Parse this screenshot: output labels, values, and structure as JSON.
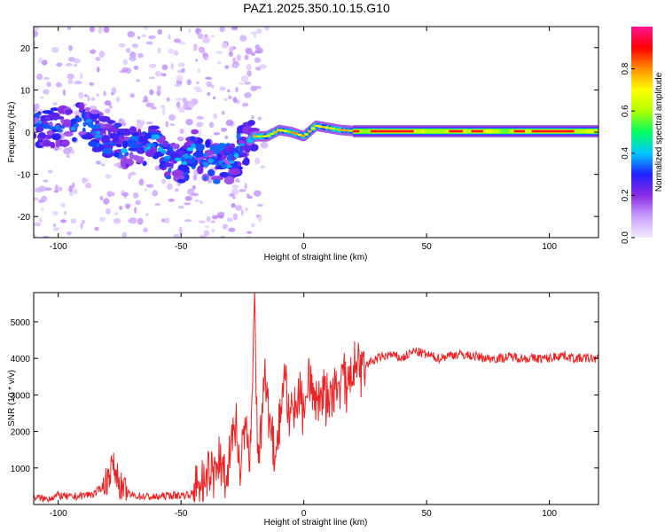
{
  "title": "PAZ1.2025.350.10.15.G10",
  "chart_data": [
    {
      "type": "heatmap",
      "xlabel": "Height of straight line (km)",
      "ylabel": "Frequency (Hz)",
      "xlim": [
        -110,
        120
      ],
      "ylim": [
        -25,
        25
      ],
      "xticks": [
        -100,
        -50,
        0,
        50,
        100
      ],
      "yticks": [
        -20,
        -10,
        0,
        10,
        20
      ],
      "colorbar": {
        "label": "Normalized spectral amplitude",
        "range": [
          0,
          1
        ],
        "ticks": [
          0.0,
          0.2,
          0.4,
          0.6,
          0.8
        ],
        "tick_labels": [
          "0.0",
          "0.2",
          "0.4",
          "0.6",
          "0.8"
        ],
        "colors": [
          "#f2eaff",
          "#c9a0ff",
          "#8a2be2",
          "#2020ff",
          "#00c8ff",
          "#00ff60",
          "#b0ff00",
          "#ffff00",
          "#ff9000",
          "#ff0000",
          "#ff1493"
        ]
      },
      "ridge": [
        {
          "x": -110,
          "f": 1.0
        },
        {
          "x": -100,
          "f": 1.0
        },
        {
          "x": -95,
          "f": 1.5
        },
        {
          "x": -90,
          "f": 2.5
        },
        {
          "x": -85,
          "f": 0.5
        },
        {
          "x": -80,
          "f": -1.5
        },
        {
          "x": -75,
          "f": -3.0
        },
        {
          "x": -70,
          "f": -4.0
        },
        {
          "x": -65,
          "f": -3.0
        },
        {
          "x": -60,
          "f": -2.0
        },
        {
          "x": -55,
          "f": -7.0
        },
        {
          "x": -50,
          "f": -7.5
        },
        {
          "x": -45,
          "f": -4.0
        },
        {
          "x": -40,
          "f": -6.5
        },
        {
          "x": -35,
          "f": -7.5
        },
        {
          "x": -30,
          "f": -7.0
        },
        {
          "x": -25,
          "f": -3.5
        },
        {
          "x": -20,
          "f": -1.0
        },
        {
          "x": -15,
          "f": -1.0
        },
        {
          "x": -10,
          "f": 0.5
        },
        {
          "x": -5,
          "f": 0.0
        },
        {
          "x": 0,
          "f": -1.0
        },
        {
          "x": 5,
          "f": 1.5
        },
        {
          "x": 10,
          "f": 1.0
        },
        {
          "x": 15,
          "f": 0.5
        },
        {
          "x": 20,
          "f": 0.3
        },
        {
          "x": 50,
          "f": 0.2
        },
        {
          "x": 120,
          "f": 0.2
        }
      ]
    },
    {
      "type": "line",
      "xlabel": "Height of straight line (km)",
      "ylabel": "SNR (10 * v/v)",
      "xlim": [
        -110,
        120
      ],
      "ylim": [
        0,
        5800
      ],
      "xticks": [
        -100,
        -50,
        0,
        50,
        100
      ],
      "yticks": [
        1000,
        2000,
        3000,
        4000,
        5000
      ],
      "color": "#ee2222",
      "series": [
        {
          "name": "SNR",
          "x": [
            -110,
            -105,
            -100,
            -95,
            -90,
            -85,
            -82,
            -80,
            -78,
            -76,
            -74,
            -72,
            -70,
            -65,
            -60,
            -55,
            -50,
            -45,
            -42,
            -40,
            -38,
            -36,
            -34,
            -32,
            -30,
            -28,
            -26,
            -24,
            -22,
            -21,
            -20,
            -19,
            -18,
            -16,
            -14,
            -12,
            -10,
            -8,
            -6,
            -4,
            -2,
            0,
            2,
            4,
            6,
            8,
            10,
            12,
            14,
            16,
            18,
            20,
            22,
            25,
            30,
            35,
            40,
            45,
            50,
            55,
            60,
            65,
            70,
            75,
            80,
            85,
            90,
            95,
            100,
            105,
            110,
            115,
            120
          ],
          "values": [
            200,
            150,
            250,
            200,
            250,
            300,
            500,
            700,
            1100,
            800,
            400,
            300,
            250,
            220,
            200,
            250,
            250,
            300,
            600,
            400,
            1100,
            700,
            1300,
            900,
            1500,
            2200,
            1000,
            2500,
            900,
            3000,
            5700,
            2000,
            1200,
            3500,
            2600,
            1300,
            2200,
            3500,
            2500,
            2600,
            3000,
            2700,
            3600,
            2800,
            3000,
            3100,
            2800,
            2900,
            3300,
            3500,
            3000,
            3800,
            3600,
            3800,
            4000,
            4100,
            4000,
            4200,
            4100,
            4000,
            4100,
            4100,
            4050,
            4000,
            4000,
            4050,
            4000,
            4000,
            4000,
            4100,
            4000,
            4000,
            4000
          ]
        }
      ]
    }
  ]
}
